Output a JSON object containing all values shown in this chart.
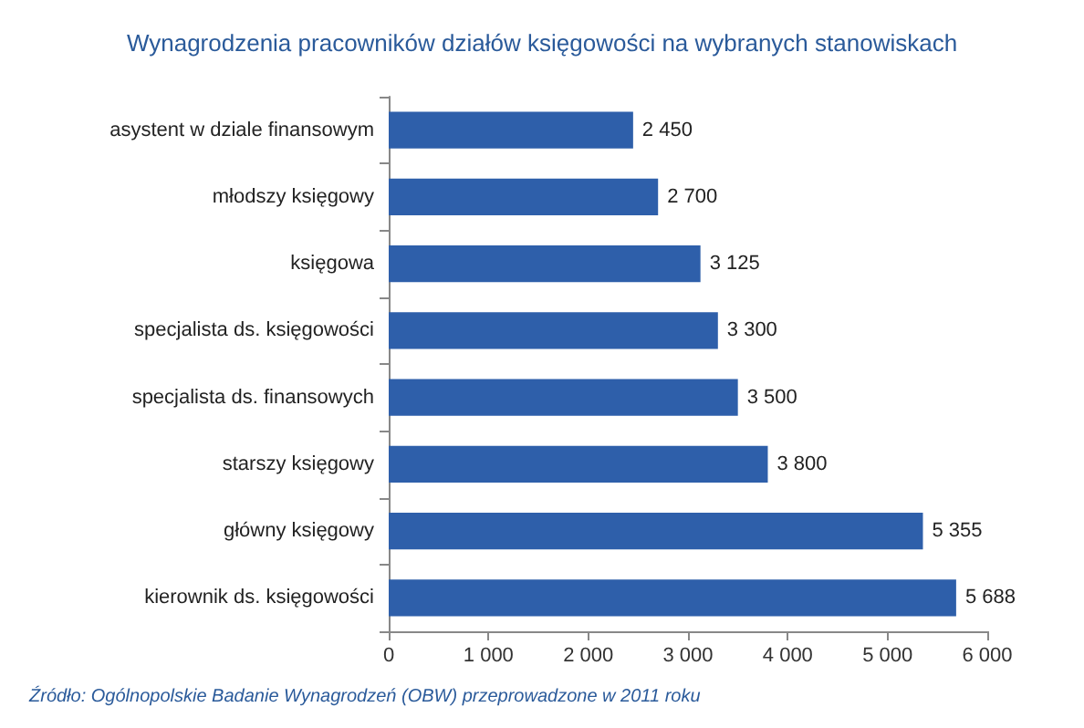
{
  "chart_data": {
    "type": "bar",
    "orientation": "horizontal",
    "title": "Wynagrodzenia pracowników działów księgowości na wybranych stanowiskach",
    "categories": [
      "asystent w dziale finansowym",
      "młodszy księgowy",
      "księgowa",
      "specjalista ds. księgowości",
      "specjalista ds. finansowych",
      "starszy księgowy",
      "główny księgowy",
      "kierownik ds. księgowości"
    ],
    "values": [
      2450,
      2700,
      3125,
      3300,
      3500,
      3800,
      5355,
      5688
    ],
    "value_labels": [
      "2 450",
      "2 700",
      "3 125",
      "3 300",
      "3 500",
      "3 800",
      "5 355",
      "5 688"
    ],
    "color": "#2e5faa",
    "xlim": [
      0,
      6000
    ],
    "xticks": [
      0,
      {
        "value": 1000,
        "label": "1 000"
      },
      {
        "value": 2000,
        "label": "2 000"
      },
      {
        "value": 3000,
        "label": "3 000"
      },
      {
        "value": 4000,
        "label": "4 000"
      },
      {
        "value": 5000,
        "label": "5 000"
      },
      {
        "value": 6000,
        "label": "6 000"
      }
    ],
    "annotations": [
      "Źródło: Ogólnopolskie Badanie Wynagrodzeń (OBW) przeprowadzone w 2011 roku"
    ]
  }
}
